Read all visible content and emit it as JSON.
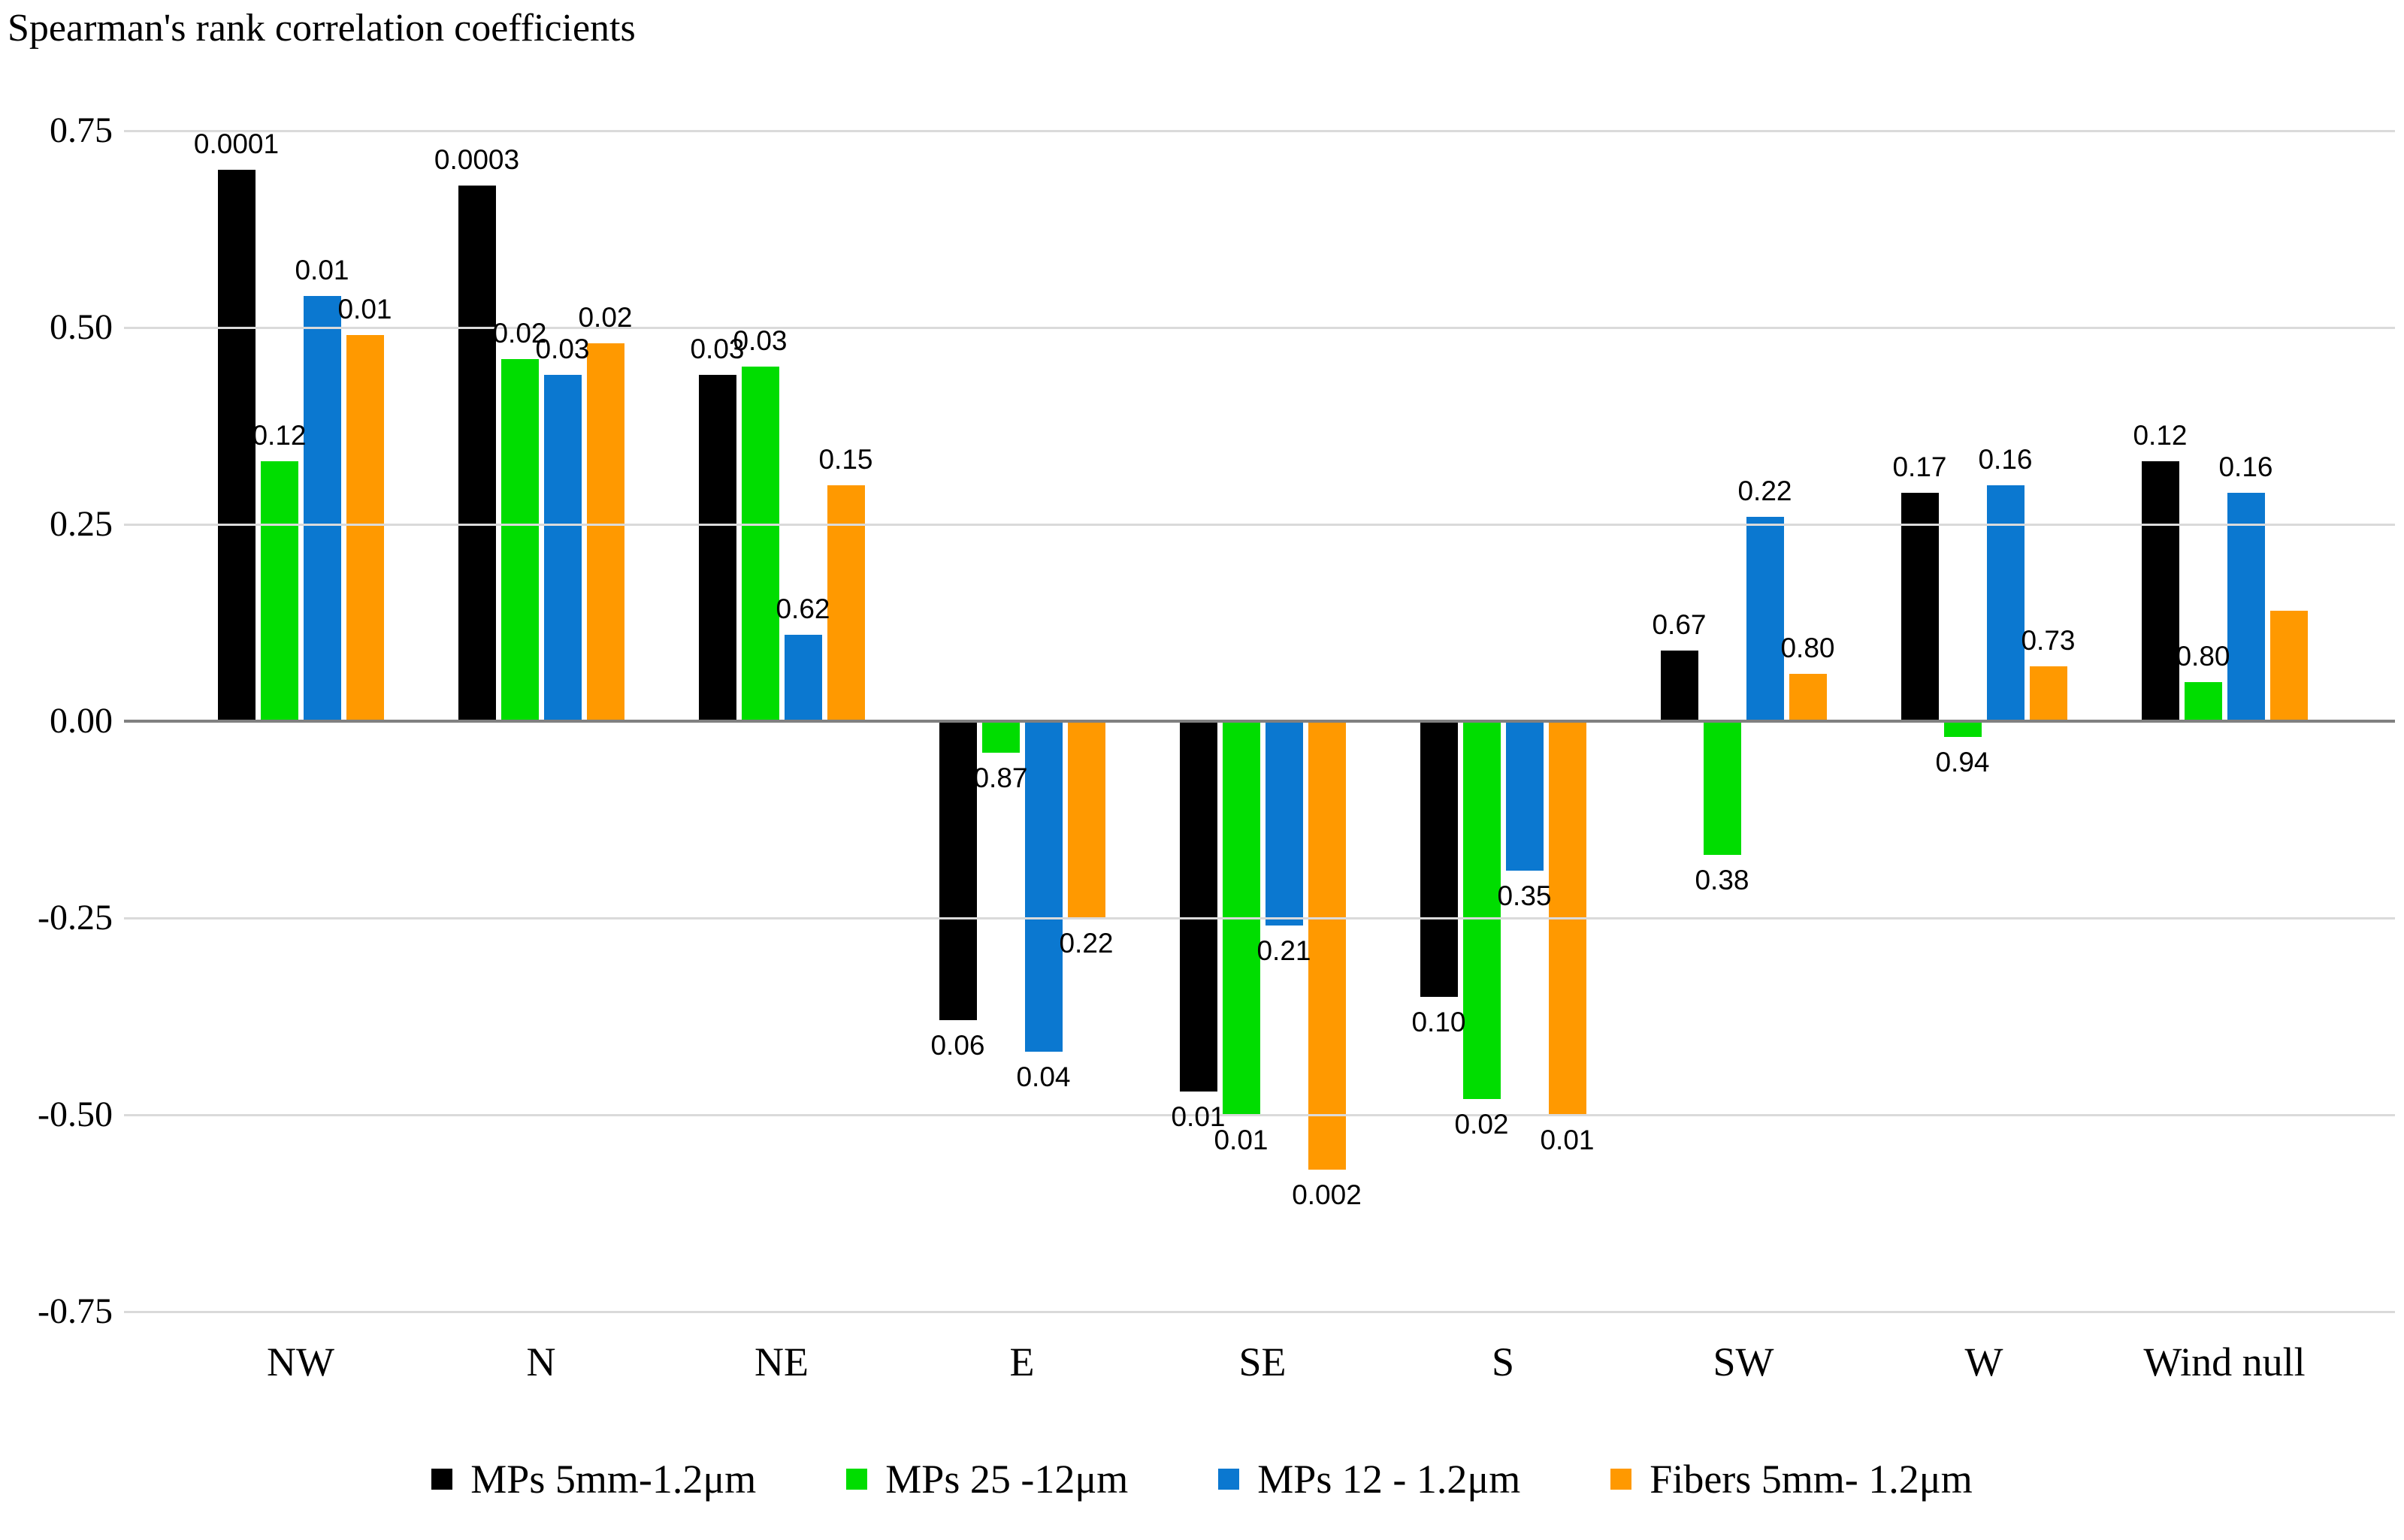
{
  "title": "Spearman's rank correlation coefficients",
  "chart_data": {
    "type": "bar",
    "title": "Spearman's rank correlation coefficients",
    "categories": [
      "NW",
      "N",
      "NE",
      "E",
      "SE",
      "S",
      "SW",
      "W",
      "Wind null"
    ],
    "series": [
      {
        "name": "MPs 5mm-1.2μm",
        "color": "#000000",
        "values": [
          0.7,
          0.68,
          0.44,
          -0.38,
          -0.47,
          -0.35,
          0.09,
          0.29,
          0.33
        ],
        "labels": [
          "0.0001",
          "0.0003",
          "0.03",
          "0.06",
          "0.01",
          "0.10",
          "0.67",
          "0.17",
          "0.12"
        ]
      },
      {
        "name": "MPs 25 -12μm",
        "color": "#00DD00",
        "values": [
          0.33,
          0.46,
          0.45,
          -0.04,
          -0.5,
          -0.48,
          -0.17,
          -0.02,
          0.05
        ],
        "labels": [
          "0.12",
          "0.02",
          "0.03",
          "0.87",
          "0.01",
          "0.02",
          "0.38",
          "0.94",
          "0.80"
        ]
      },
      {
        "name": "MPs 12 - 1.2μm",
        "color": "#0B78D0",
        "values": [
          0.54,
          0.44,
          0.11,
          -0.42,
          -0.26,
          -0.19,
          0.26,
          0.3,
          0.29
        ],
        "labels": [
          "0.01",
          "0.03",
          "0.62",
          "0.04",
          "0.21",
          "0.35",
          "0.22",
          "0.16",
          "0.16"
        ]
      },
      {
        "name": "Fibers 5mm- 1.2μm",
        "color": "#FF9900",
        "values": [
          0.49,
          0.48,
          0.3,
          -0.25,
          -0.57,
          -0.5,
          0.06,
          0.07,
          0.14
        ],
        "labels": [
          "0.01",
          "0.02",
          "0.15",
          "0.22",
          "0.002",
          "0.01",
          "0.80",
          "0.73",
          ""
        ]
      }
    ],
    "ylim": [
      -0.75,
      0.75
    ],
    "yticks": [
      {
        "value": 0.75,
        "label": "0.75"
      },
      {
        "value": 0.5,
        "label": "0.50"
      },
      {
        "value": 0.25,
        "label": "0.25"
      },
      {
        "value": 0.0,
        "label": "0.00"
      },
      {
        "value": -0.25,
        "label": "-0.25"
      },
      {
        "value": -0.5,
        "label": "-0.50"
      },
      {
        "value": -0.75,
        "label": "-0.75"
      }
    ],
    "grid": true,
    "legend_position": "bottom",
    "value_labels_meaning": "p-values printed above positive bars and below negative bars"
  }
}
